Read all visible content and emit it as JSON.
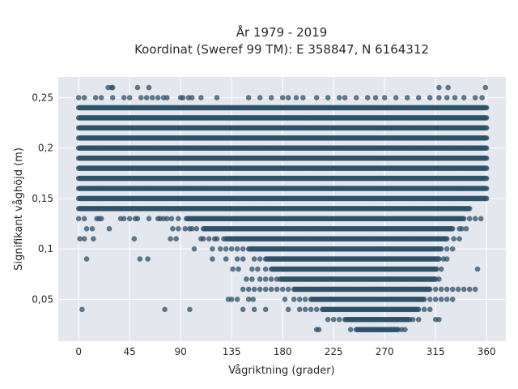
{
  "chart_data": {
    "type": "scatter",
    "title_line1": "År 1979 - 2019",
    "title_line2": "Koordinat (Sweref 99 TM): E 358847, N 6164312",
    "xlabel": "Vågriktning (grader)",
    "ylabel": "Signifikant våghöjd (m)",
    "xlim": [
      -18,
      377
    ],
    "ylim": [
      0.0085,
      0.2705
    ],
    "x_ticks": [
      0,
      45,
      90,
      135,
      180,
      225,
      270,
      315,
      360
    ],
    "x_tick_labels": [
      "0",
      "45",
      "90",
      "135",
      "180",
      "225",
      "270",
      "315",
      "360"
    ],
    "y_ticks": [
      0.05,
      0.1,
      0.15,
      0.2,
      0.25
    ],
    "y_tick_labels": [
      "0,05",
      "0,1",
      "0,15",
      "0,2",
      "0,25"
    ],
    "grid": true,
    "marker_color": "#2e5168",
    "plot_bg": "#e5e7ef",
    "bands": [
      {
        "y": 0.24,
        "x_ranges": [
          [
            0,
            360
          ]
        ]
      },
      {
        "y": 0.23,
        "x_ranges": [
          [
            0,
            360
          ]
        ]
      },
      {
        "y": 0.22,
        "x_ranges": [
          [
            0,
            360
          ]
        ]
      },
      {
        "y": 0.21,
        "x_ranges": [
          [
            0,
            360
          ]
        ]
      },
      {
        "y": 0.2,
        "x_ranges": [
          [
            0,
            360
          ]
        ]
      },
      {
        "y": 0.19,
        "x_ranges": [
          [
            0,
            360
          ]
        ]
      },
      {
        "y": 0.18,
        "x_ranges": [
          [
            0,
            360
          ]
        ]
      },
      {
        "y": 0.17,
        "x_ranges": [
          [
            0,
            360
          ]
        ]
      },
      {
        "y": 0.16,
        "x_ranges": [
          [
            0,
            360
          ]
        ]
      },
      {
        "y": 0.15,
        "x_ranges": [
          [
            0,
            360
          ]
        ]
      },
      {
        "y": 0.14,
        "x_ranges": [
          [
            0,
            345
          ]
        ]
      },
      {
        "y": 0.13,
        "x_ranges": [
          [
            95,
            340
          ]
        ]
      },
      {
        "y": 0.12,
        "x_ranges": [
          [
            110,
            330
          ]
        ]
      },
      {
        "y": 0.11,
        "x_ranges": [
          [
            130,
            325
          ]
        ]
      },
      {
        "y": 0.1,
        "x_ranges": [
          [
            150,
            320
          ]
        ]
      },
      {
        "y": 0.09,
        "x_ranges": [
          [
            165,
            318
          ]
        ]
      },
      {
        "y": 0.08,
        "x_ranges": [
          [
            170,
            316
          ]
        ]
      },
      {
        "y": 0.07,
        "x_ranges": [
          [
            178,
            315
          ]
        ]
      },
      {
        "y": 0.06,
        "x_ranges": [
          [
            190,
            310
          ]
        ]
      },
      {
        "y": 0.05,
        "x_ranges": [
          [
            205,
            305
          ]
        ]
      },
      {
        "y": 0.04,
        "x_ranges": [
          [
            215,
            300
          ]
        ]
      },
      {
        "y": 0.03,
        "x_ranges": [
          [
            235,
            292
          ]
        ]
      },
      {
        "y": 0.02,
        "x_ranges": [
          [
            245,
            282
          ]
        ]
      }
    ],
    "scattered_points": [
      [
        26,
        0.26
      ],
      [
        29,
        0.26
      ],
      [
        30,
        0.26
      ],
      [
        52,
        0.26
      ],
      [
        62,
        0.26
      ],
      [
        318,
        0.26
      ],
      [
        326,
        0.26
      ],
      [
        359,
        0.26
      ],
      [
        0,
        0.25
      ],
      [
        5,
        0.25
      ],
      [
        15,
        0.25
      ],
      [
        20,
        0.25
      ],
      [
        30,
        0.25
      ],
      [
        40,
        0.25
      ],
      [
        45,
        0.25
      ],
      [
        55,
        0.25
      ],
      [
        60,
        0.25
      ],
      [
        65,
        0.25
      ],
      [
        70,
        0.25
      ],
      [
        75,
        0.25
      ],
      [
        78,
        0.25
      ],
      [
        90,
        0.25
      ],
      [
        92,
        0.25
      ],
      [
        97,
        0.25
      ],
      [
        100,
        0.25
      ],
      [
        108,
        0.25
      ],
      [
        122,
        0.25
      ],
      [
        150,
        0.25
      ],
      [
        160,
        0.25
      ],
      [
        170,
        0.25
      ],
      [
        180,
        0.25
      ],
      [
        185,
        0.25
      ],
      [
        192,
        0.25
      ],
      [
        198,
        0.25
      ],
      [
        210,
        0.25
      ],
      [
        220,
        0.25
      ],
      [
        230,
        0.25
      ],
      [
        235,
        0.25
      ],
      [
        245,
        0.25
      ],
      [
        255,
        0.25
      ],
      [
        262,
        0.25
      ],
      [
        270,
        0.25
      ],
      [
        280,
        0.25
      ],
      [
        290,
        0.25
      ],
      [
        300,
        0.25
      ],
      [
        310,
        0.25
      ],
      [
        318,
        0.25
      ],
      [
        325,
        0.25
      ],
      [
        332,
        0.25
      ],
      [
        340,
        0.25
      ],
      [
        350,
        0.25
      ],
      [
        356,
        0.25
      ],
      [
        0,
        0.13
      ],
      [
        5,
        0.13
      ],
      [
        16,
        0.13
      ],
      [
        18,
        0.13
      ],
      [
        20,
        0.13
      ],
      [
        37,
        0.13
      ],
      [
        40,
        0.13
      ],
      [
        45,
        0.13
      ],
      [
        50,
        0.13
      ],
      [
        52,
        0.13
      ],
      [
        62,
        0.13
      ],
      [
        70,
        0.13
      ],
      [
        72,
        0.13
      ],
      [
        75,
        0.13
      ],
      [
        78,
        0.13
      ],
      [
        82,
        0.13
      ],
      [
        88,
        0.13
      ],
      [
        345,
        0.13
      ],
      [
        350,
        0.13
      ],
      [
        355,
        0.13
      ],
      [
        7,
        0.12
      ],
      [
        12,
        0.12
      ],
      [
        27,
        0.12
      ],
      [
        83,
        0.12
      ],
      [
        88,
        0.12
      ],
      [
        94,
        0.12
      ],
      [
        98,
        0.12
      ],
      [
        100,
        0.12
      ],
      [
        104,
        0.12
      ],
      [
        336,
        0.12
      ],
      [
        338,
        0.12
      ],
      [
        342,
        0.12
      ],
      [
        1,
        0.11
      ],
      [
        5,
        0.11
      ],
      [
        13,
        0.11
      ],
      [
        49,
        0.11
      ],
      [
        81,
        0.11
      ],
      [
        86,
        0.11
      ],
      [
        108,
        0.11
      ],
      [
        110,
        0.11
      ],
      [
        115,
        0.11
      ],
      [
        120,
        0.11
      ],
      [
        122,
        0.11
      ],
      [
        128,
        0.11
      ],
      [
        331,
        0.11
      ],
      [
        336,
        0.11
      ],
      [
        102,
        0.1
      ],
      [
        118,
        0.1
      ],
      [
        125,
        0.1
      ],
      [
        130,
        0.1
      ],
      [
        135,
        0.1
      ],
      [
        140,
        0.1
      ],
      [
        145,
        0.1
      ],
      [
        325,
        0.1
      ],
      [
        330,
        0.1
      ],
      [
        7,
        0.09
      ],
      [
        54,
        0.09
      ],
      [
        61,
        0.09
      ],
      [
        118,
        0.09
      ],
      [
        130,
        0.09
      ],
      [
        140,
        0.09
      ],
      [
        145,
        0.09
      ],
      [
        155,
        0.09
      ],
      [
        160,
        0.09
      ],
      [
        322,
        0.09
      ],
      [
        325,
        0.09
      ],
      [
        136,
        0.08
      ],
      [
        141,
        0.08
      ],
      [
        153,
        0.08
      ],
      [
        158,
        0.08
      ],
      [
        165,
        0.08
      ],
      [
        320,
        0.08
      ],
      [
        352,
        0.08
      ],
      [
        148,
        0.07
      ],
      [
        153,
        0.07
      ],
      [
        160,
        0.07
      ],
      [
        165,
        0.07
      ],
      [
        170,
        0.07
      ],
      [
        175,
        0.07
      ],
      [
        318,
        0.07
      ],
      [
        145,
        0.06
      ],
      [
        150,
        0.06
      ],
      [
        155,
        0.06
      ],
      [
        160,
        0.06
      ],
      [
        165,
        0.06
      ],
      [
        170,
        0.06
      ],
      [
        175,
        0.06
      ],
      [
        180,
        0.06
      ],
      [
        185,
        0.06
      ],
      [
        315,
        0.06
      ],
      [
        320,
        0.06
      ],
      [
        325,
        0.06
      ],
      [
        330,
        0.06
      ],
      [
        335,
        0.06
      ],
      [
        340,
        0.06
      ],
      [
        345,
        0.06
      ],
      [
        350,
        0.06
      ],
      [
        132,
        0.05
      ],
      [
        135,
        0.05
      ],
      [
        140,
        0.05
      ],
      [
        150,
        0.05
      ],
      [
        154,
        0.05
      ],
      [
        182,
        0.05
      ],
      [
        190,
        0.05
      ],
      [
        195,
        0.05
      ],
      [
        200,
        0.05
      ],
      [
        310,
        0.05
      ],
      [
        315,
        0.05
      ],
      [
        320,
        0.05
      ],
      [
        325,
        0.05
      ],
      [
        330,
        0.05
      ],
      [
        3,
        0.04
      ],
      [
        76,
        0.04
      ],
      [
        98,
        0.04
      ],
      [
        145,
        0.04
      ],
      [
        155,
        0.04
      ],
      [
        165,
        0.04
      ],
      [
        185,
        0.04
      ],
      [
        195,
        0.04
      ],
      [
        200,
        0.04
      ],
      [
        205,
        0.04
      ],
      [
        210,
        0.04
      ],
      [
        305,
        0.04
      ],
      [
        310,
        0.04
      ],
      [
        220,
        0.03
      ],
      [
        225,
        0.03
      ],
      [
        230,
        0.03
      ],
      [
        295,
        0.03
      ],
      [
        300,
        0.03
      ],
      [
        315,
        0.03
      ],
      [
        318,
        0.03
      ],
      [
        210,
        0.02
      ],
      [
        212,
        0.02
      ],
      [
        240,
        0.02
      ],
      [
        285,
        0.02
      ],
      [
        288,
        0.02
      ]
    ]
  }
}
